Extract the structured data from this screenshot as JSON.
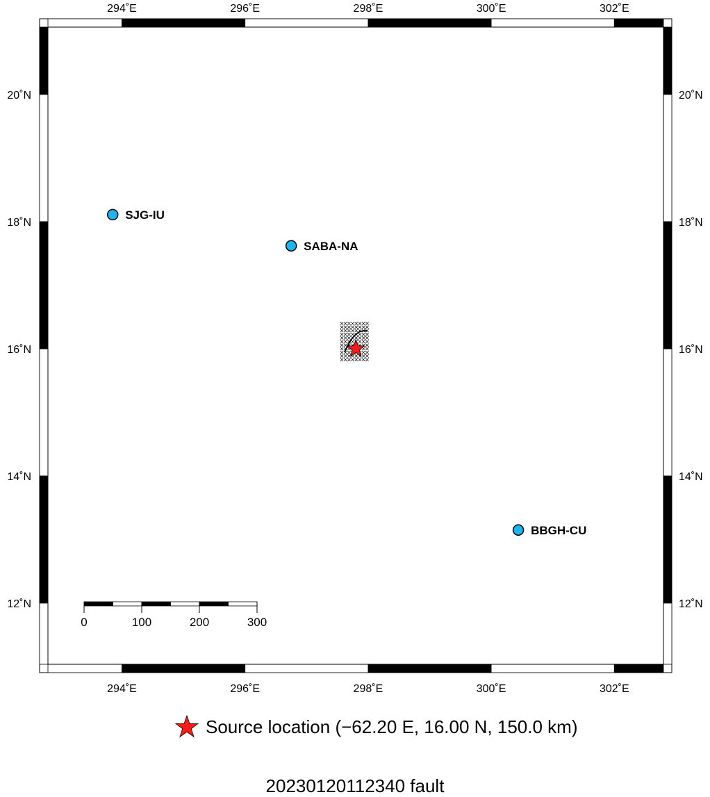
{
  "map": {
    "background_color": "#e0ffff",
    "land_color": "#b3f066",
    "frame": {
      "lon_range": [
        292.7,
        302.9
      ],
      "lat_range": [
        11.0,
        21.1
      ]
    },
    "lon_ticks": [
      {
        "value": 294,
        "label": "294˚E"
      },
      {
        "value": 296,
        "label": "296˚E"
      },
      {
        "value": 298,
        "label": "298˚E"
      },
      {
        "value": 300,
        "label": "300˚E"
      },
      {
        "value": 302,
        "label": "302˚E"
      }
    ],
    "lat_ticks": [
      {
        "value": 12,
        "label": "12˚N"
      },
      {
        "value": 14,
        "label": "14˚N"
      },
      {
        "value": 16,
        "label": "16˚N"
      },
      {
        "value": 18,
        "label": "18˚N"
      },
      {
        "value": 20,
        "label": "20˚N"
      }
    ],
    "stations": [
      {
        "name": "SJG-IU",
        "lon": 293.85,
        "lat": 18.11,
        "color": "#1eb4f0"
      },
      {
        "name": "SABA-NA",
        "lon": 296.75,
        "lat": 17.62,
        "color": "#1eb4f0"
      },
      {
        "name": "BBGH-CU",
        "lon": 300.44,
        "lat": 13.15,
        "color": "#1eb4f0"
      }
    ],
    "source": {
      "lon": 297.8,
      "lat": 16.0,
      "color": "#ff1a1a"
    },
    "scale_bar": {
      "labels": [
        "0",
        "100",
        "200",
        "300"
      ],
      "unit": "km"
    },
    "grid_search_area": {
      "lon_range": [
        297.55,
        298.05
      ],
      "lat_range": [
        15.78,
        16.42
      ]
    }
  },
  "legend": {
    "text": "Source location (−62.20 E, 16.00 N, 150.0 km)",
    "star_color": "#ff1a1a"
  },
  "footer": {
    "title": "20230120112340 fault"
  }
}
